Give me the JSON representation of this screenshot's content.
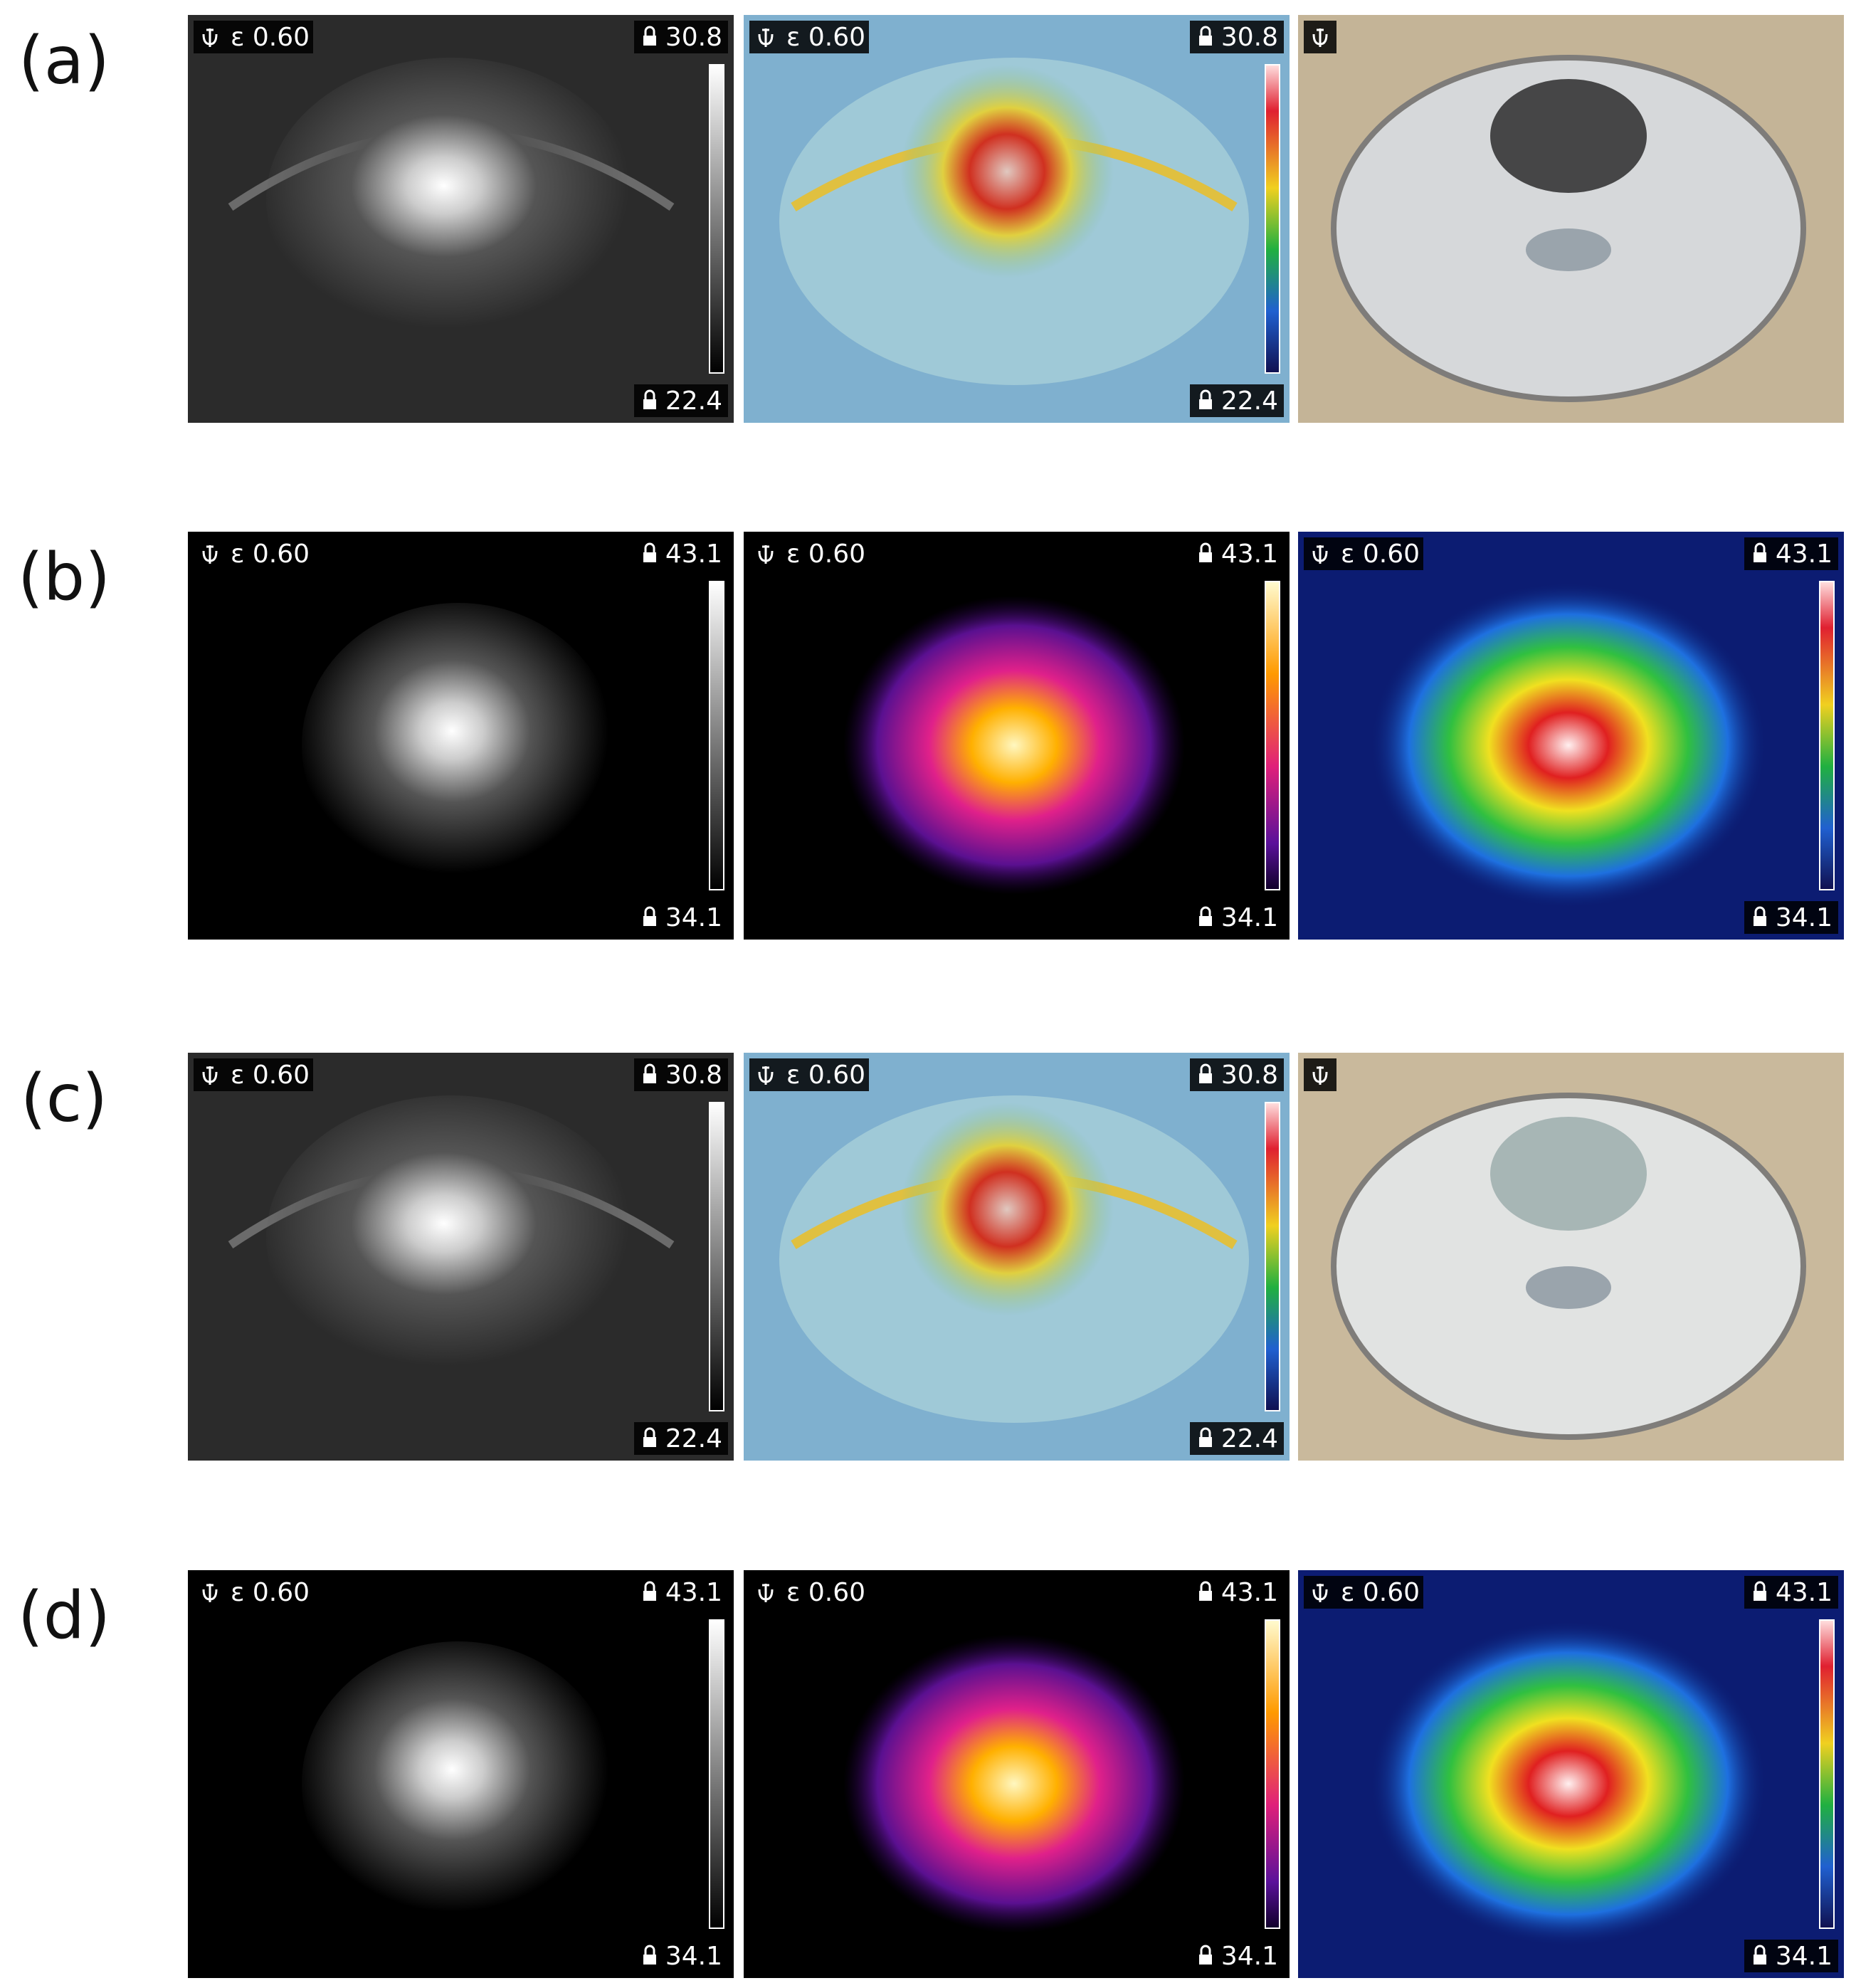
{
  "figure": {
    "rows": [
      {
        "label": "(a)",
        "panels": [
          {
            "emissivity": "ε 0.60",
            "max": "30.8",
            "min": "22.4"
          },
          {
            "emissivity": "ε 0.60",
            "max": "30.8",
            "min": "22.4"
          }
        ]
      },
      {
        "label": "(b)",
        "panels": [
          {
            "emissivity": "ε 0.60",
            "max": "43.1",
            "min": "34.1"
          },
          {
            "emissivity": "ε 0.60",
            "max": "43.1",
            "min": "34.1"
          },
          {
            "emissivity": "ε 0.60",
            "max": "43.1",
            "min": "34.1"
          }
        ]
      },
      {
        "label": "(c)",
        "panels": [
          {
            "emissivity": "ε 0.60",
            "max": "30.8",
            "min": "22.4"
          },
          {
            "emissivity": "ε 0.60",
            "max": "30.8",
            "min": "22.4"
          }
        ]
      },
      {
        "label": "(d)",
        "panels": [
          {
            "emissivity": "ε 0.60",
            "max": "43.1",
            "min": "34.1"
          },
          {
            "emissivity": "ε 0.60",
            "max": "43.1",
            "min": "34.1"
          },
          {
            "emissivity": "ε 0.60",
            "max": "43.1",
            "min": "34.1"
          }
        ]
      }
    ]
  }
}
